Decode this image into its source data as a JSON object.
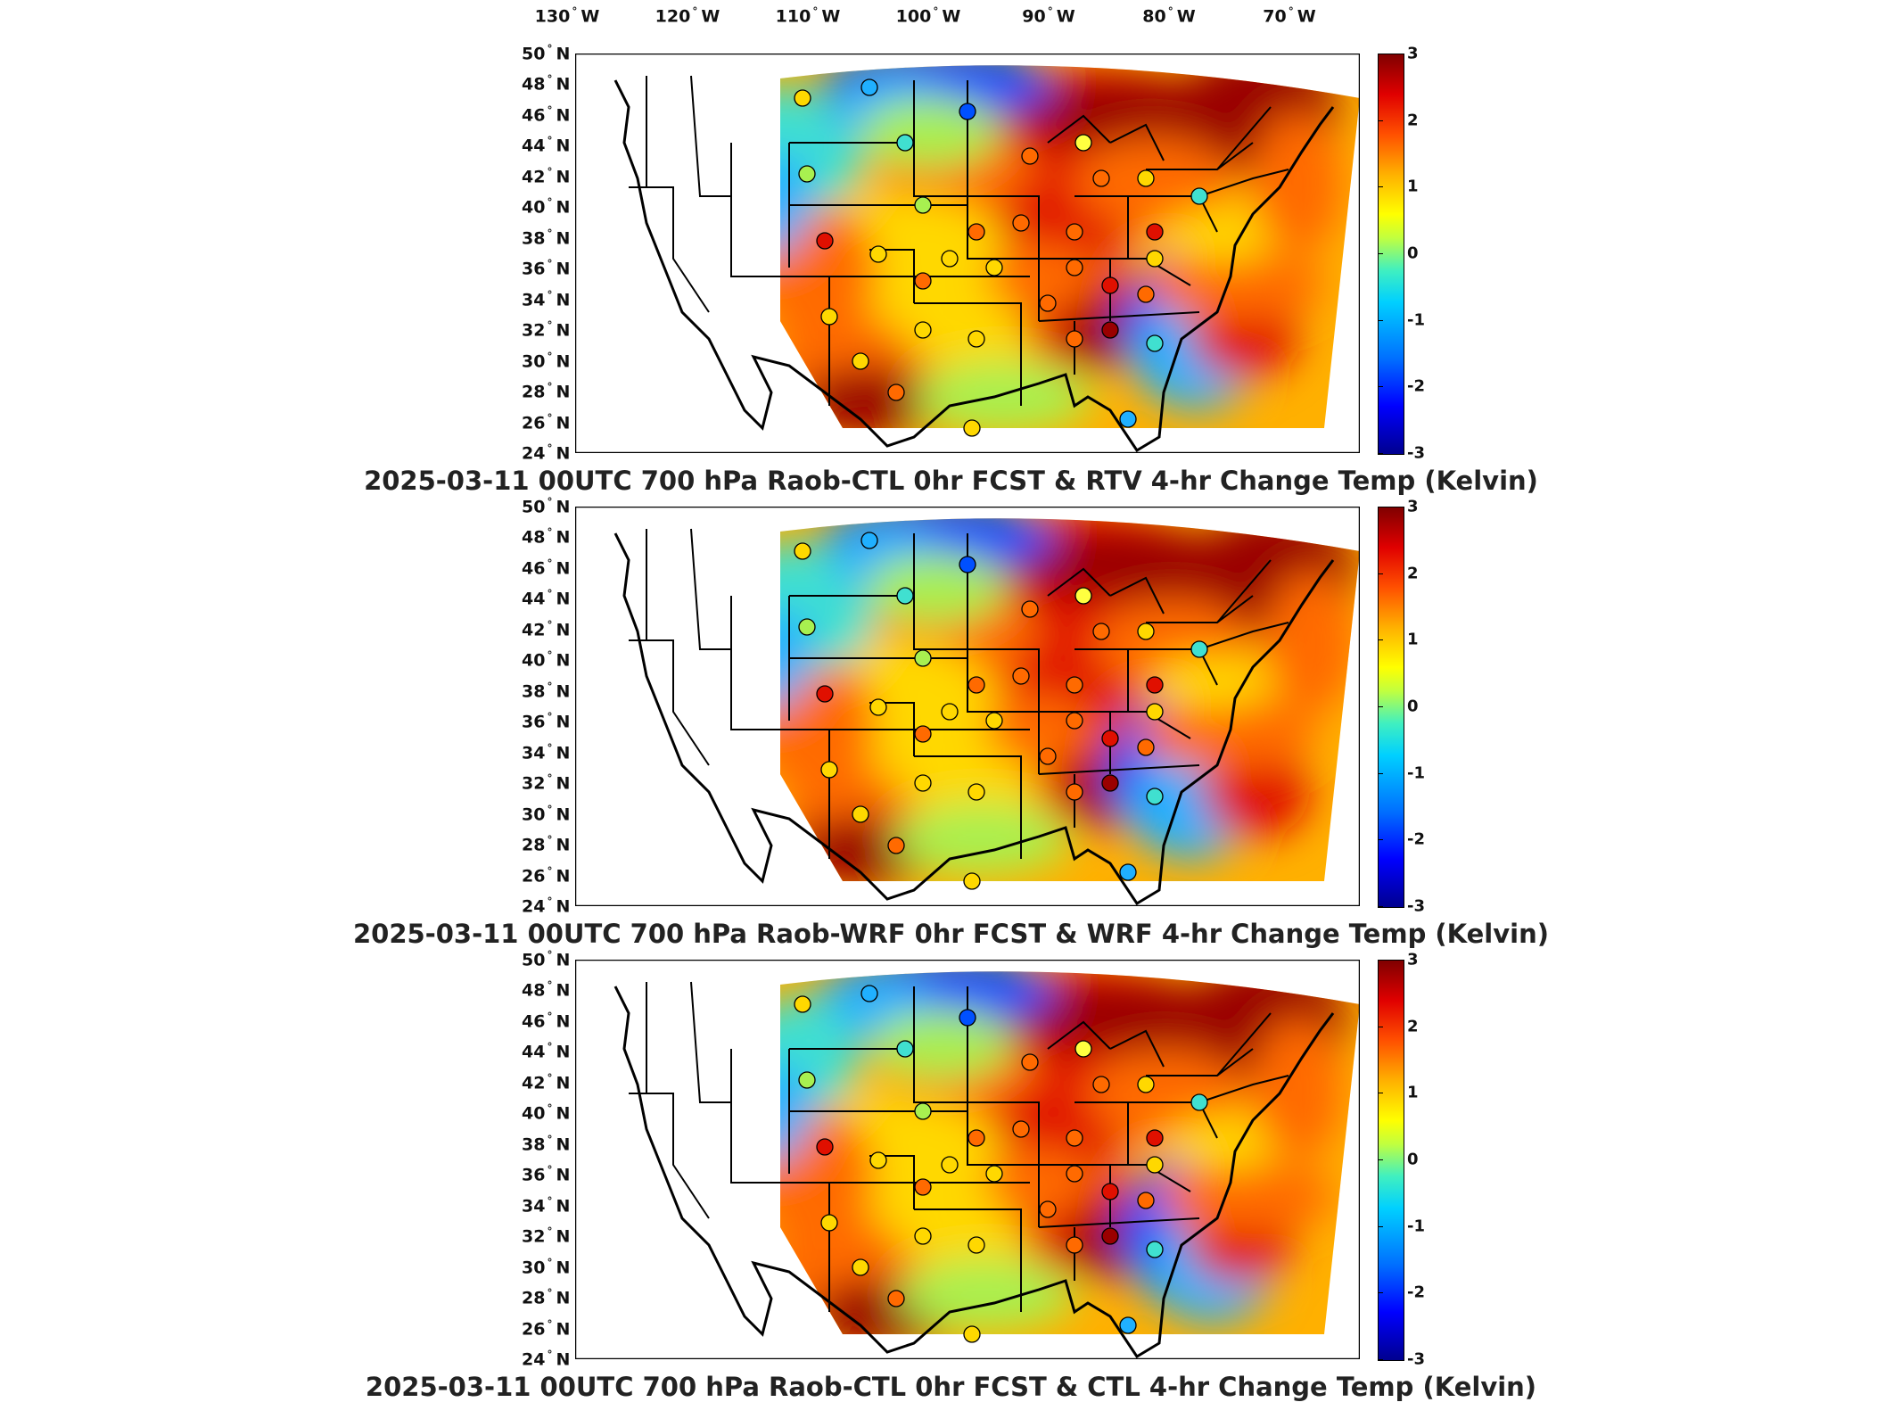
{
  "longitude_labels": [
    {
      "deg": "130",
      "hemi": "W"
    },
    {
      "deg": "120",
      "hemi": "W"
    },
    {
      "deg": "110",
      "hemi": "W"
    },
    {
      "deg": "100",
      "hemi": "W"
    },
    {
      "deg": "90",
      "hemi": "W"
    },
    {
      "deg": "80",
      "hemi": "W"
    },
    {
      "deg": "70",
      "hemi": "W"
    }
  ],
  "latitude_labels": [
    {
      "deg": "50",
      "hemi": "N"
    },
    {
      "deg": "48",
      "hemi": "N"
    },
    {
      "deg": "46",
      "hemi": "N"
    },
    {
      "deg": "44",
      "hemi": "N"
    },
    {
      "deg": "42",
      "hemi": "N"
    },
    {
      "deg": "40",
      "hemi": "N"
    },
    {
      "deg": "38",
      "hemi": "N"
    },
    {
      "deg": "36",
      "hemi": "N"
    },
    {
      "deg": "34",
      "hemi": "N"
    },
    {
      "deg": "32",
      "hemi": "N"
    },
    {
      "deg": "30",
      "hemi": "N"
    },
    {
      "deg": "28",
      "hemi": "N"
    },
    {
      "deg": "26",
      "hemi": "N"
    },
    {
      "deg": "24",
      "hemi": "N"
    }
  ],
  "colorbar": {
    "min": -3,
    "max": 3,
    "ticks": [
      "3",
      "2",
      "1",
      "0",
      "-1",
      "-2",
      "-3"
    ],
    "colors": [
      "#00008f",
      "#0000ff",
      "#00d0ff",
      "#c0ff40",
      "#ffff00",
      "#ff5000",
      "#800000"
    ]
  },
  "panels": [
    {
      "title": "2025-03-11 00UTC 700 hPa Raob-CTL 0hr FCST & RTV 4-hr Change Temp (Kelvin)"
    },
    {
      "title": "2025-03-11 00UTC 700 hPa Raob-WRF 0hr FCST & WRF 4-hr Change Temp (Kelvin)"
    },
    {
      "title": "2025-03-11 00UTC 700 hPa Raob-CTL 0hr FCST & CTL 4-hr Change Temp (Kelvin)"
    }
  ]
}
